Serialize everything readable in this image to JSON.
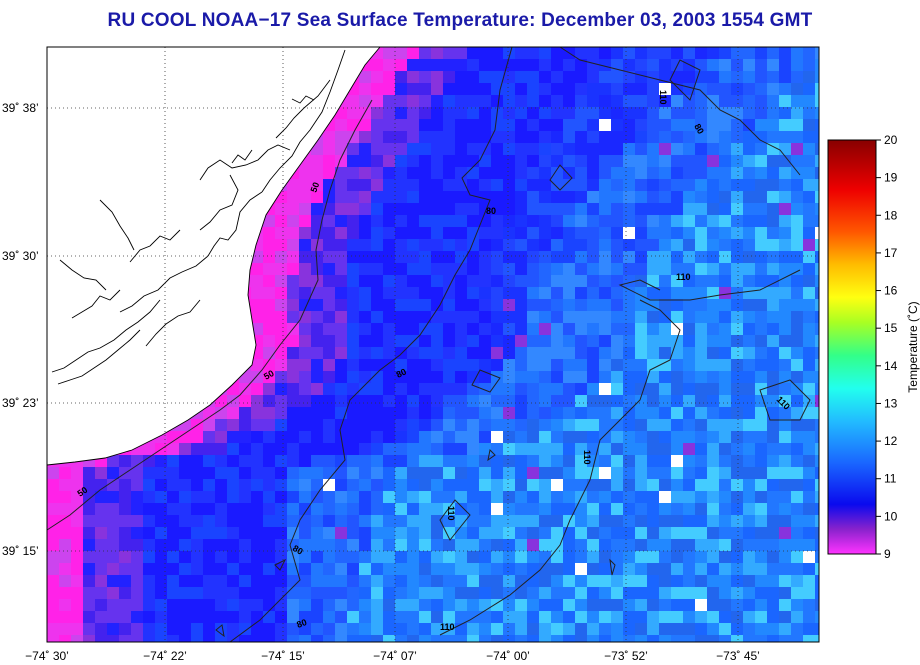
{
  "title": "RU COOL  NOAA−17  Sea Surface Temperature:  December 03, 2003 1554 GMT",
  "colorbar": {
    "label": "Temperature (˚C)",
    "ticks": [
      "20",
      "19",
      "18",
      "17",
      "16",
      "15",
      "14",
      "13",
      "12",
      "11",
      "10",
      "9"
    ],
    "min": 9,
    "max": 20
  },
  "lat_ticks": [
    "39˚ 38’",
    "39˚ 30’",
    "39˚ 23’",
    "39˚ 15’"
  ],
  "lon_ticks": [
    "−74˚ 30’",
    "−74˚ 22’",
    "−74˚ 15’",
    "−74˚ 07’",
    "−74˚ 00’",
    "−73˚ 52’",
    "−73˚ 45’"
  ],
  "contour_labels": [
    "50",
    "50",
    "50",
    "80",
    "80",
    "80",
    "80",
    "110",
    "110",
    "110",
    "110",
    "110",
    "80"
  ],
  "colors": {
    "title": "#1a1aa8",
    "land": "#ffffff",
    "cold_magenta": "#ff1ae8",
    "blue": "#1a22ff"
  }
}
